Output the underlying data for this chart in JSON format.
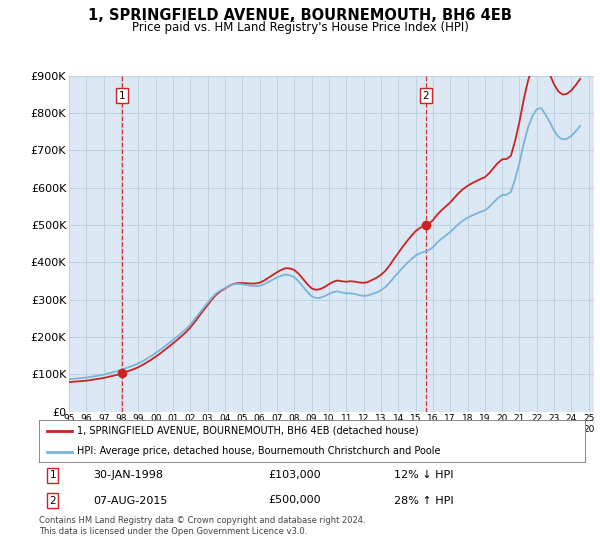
{
  "title": "1, SPRINGFIELD AVENUE, BOURNEMOUTH, BH6 4EB",
  "subtitle": "Price paid vs. HM Land Registry's House Price Index (HPI)",
  "ylim": [
    0,
    900000
  ],
  "yticks": [
    0,
    100000,
    200000,
    300000,
    400000,
    500000,
    600000,
    700000,
    800000,
    900000
  ],
  "ytick_labels": [
    "£0",
    "£100K",
    "£200K",
    "£300K",
    "£400K",
    "£500K",
    "£600K",
    "£700K",
    "£800K",
    "£900K"
  ],
  "sale1_date": 1998.08,
  "sale1_price": 103000,
  "sale1_label": "1",
  "sale1_text": "30-JAN-1998",
  "sale1_amount": "£103,000",
  "sale1_hpi": "12% ↓ HPI",
  "sale2_date": 2015.58,
  "sale2_price": 500000,
  "sale2_label": "2",
  "sale2_text": "07-AUG-2015",
  "sale2_amount": "£500,000",
  "sale2_hpi": "28% ↑ HPI",
  "hpi_line_color": "#7ab4d8",
  "sale_line_color": "#cc2222",
  "vline_color": "#cc2222",
  "marker_color": "#cc2222",
  "grid_color": "#b8cfe0",
  "chart_bg_color": "#dce9f5",
  "background_color": "#ffffff",
  "legend_entry1": "1, SPRINGFIELD AVENUE, BOURNEMOUTH, BH6 4EB (detached house)",
  "legend_entry2": "HPI: Average price, detached house, Bournemouth Christchurch and Poole",
  "footnote": "Contains HM Land Registry data © Crown copyright and database right 2024.\nThis data is licensed under the Open Government Licence v3.0.",
  "hpi_data_x": [
    1995.0,
    1995.25,
    1995.5,
    1995.75,
    1996.0,
    1996.25,
    1996.5,
    1996.75,
    1997.0,
    1997.25,
    1997.5,
    1997.75,
    1998.0,
    1998.25,
    1998.5,
    1998.75,
    1999.0,
    1999.25,
    1999.5,
    1999.75,
    2000.0,
    2000.25,
    2000.5,
    2000.75,
    2001.0,
    2001.25,
    2001.5,
    2001.75,
    2002.0,
    2002.25,
    2002.5,
    2002.75,
    2003.0,
    2003.25,
    2003.5,
    2003.75,
    2004.0,
    2004.25,
    2004.5,
    2004.75,
    2005.0,
    2005.25,
    2005.5,
    2005.75,
    2006.0,
    2006.25,
    2006.5,
    2006.75,
    2007.0,
    2007.25,
    2007.5,
    2007.75,
    2008.0,
    2008.25,
    2008.5,
    2008.75,
    2009.0,
    2009.25,
    2009.5,
    2009.75,
    2010.0,
    2010.25,
    2010.5,
    2010.75,
    2011.0,
    2011.25,
    2011.5,
    2011.75,
    2012.0,
    2012.25,
    2012.5,
    2012.75,
    2013.0,
    2013.25,
    2013.5,
    2013.75,
    2014.0,
    2014.25,
    2014.5,
    2014.75,
    2015.0,
    2015.25,
    2015.5,
    2015.75,
    2016.0,
    2016.25,
    2016.5,
    2016.75,
    2017.0,
    2017.25,
    2017.5,
    2017.75,
    2018.0,
    2018.25,
    2018.5,
    2018.75,
    2019.0,
    2019.25,
    2019.5,
    2019.75,
    2020.0,
    2020.25,
    2020.5,
    2020.75,
    2021.0,
    2021.25,
    2021.5,
    2021.75,
    2022.0,
    2022.25,
    2022.5,
    2022.75,
    2023.0,
    2023.25,
    2023.5,
    2023.75,
    2024.0,
    2024.25,
    2024.5
  ],
  "hpi_data_y": [
    87000,
    88000,
    89000,
    90000,
    91000,
    93000,
    95000,
    97000,
    99000,
    102000,
    105000,
    108000,
    112000,
    116000,
    120000,
    124000,
    129000,
    135000,
    142000,
    149000,
    157000,
    165000,
    174000,
    183000,
    192000,
    201000,
    211000,
    221000,
    233000,
    247000,
    262000,
    277000,
    291000,
    305000,
    317000,
    325000,
    331000,
    337000,
    341000,
    342000,
    341000,
    339000,
    337000,
    336000,
    337000,
    341000,
    347000,
    353000,
    359000,
    364000,
    367000,
    365000,
    360000,
    349000,
    335000,
    321000,
    309000,
    304000,
    305000,
    309000,
    315000,
    320000,
    322000,
    319000,
    317000,
    317000,
    315000,
    312000,
    310000,
    311000,
    315000,
    319000,
    325000,
    333000,
    345000,
    359000,
    372000,
    385000,
    397000,
    408000,
    418000,
    424000,
    428000,
    432000,
    440000,
    453000,
    463000,
    472000,
    481000,
    492000,
    503000,
    512000,
    519000,
    525000,
    530000,
    535000,
    539000,
    548000,
    560000,
    572000,
    580000,
    581000,
    588000,
    623000,
    667000,
    719000,
    762000,
    792000,
    810000,
    813000,
    796000,
    775000,
    752000,
    736000,
    729000,
    731000,
    739000,
    751000,
    765000
  ],
  "xtick_years": [
    1995,
    1996,
    1997,
    1998,
    1999,
    2000,
    2001,
    2002,
    2003,
    2004,
    2005,
    2006,
    2007,
    2008,
    2009,
    2010,
    2011,
    2012,
    2013,
    2014,
    2015,
    2016,
    2017,
    2018,
    2019,
    2020,
    2021,
    2022,
    2023,
    2024,
    2025
  ]
}
